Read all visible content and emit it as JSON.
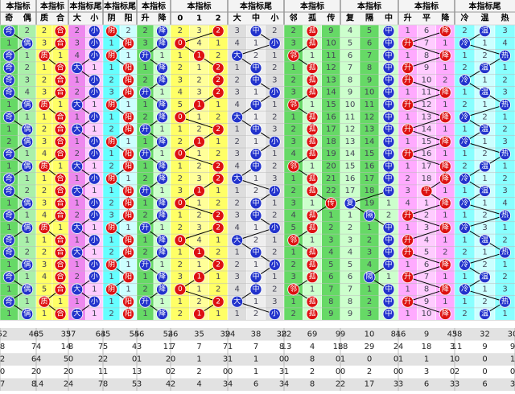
{
  "groups": [
    {
      "title": "本指标",
      "columns": [
        "奇",
        "偶"
      ]
    },
    {
      "title": "本指标",
      "columns": [
        "质",
        "合"
      ]
    },
    {
      "title": "本指标尾",
      "columns": [
        "大",
        "小"
      ]
    },
    {
      "title": "本指标尾",
      "columns": [
        "阴",
        "阳"
      ]
    },
    {
      "title": "本指标",
      "columns": [
        "升",
        "降"
      ]
    },
    {
      "title": "本指标",
      "columns": [
        "0",
        "1",
        "2"
      ]
    },
    {
      "title": "本指标尾",
      "columns": [
        "大",
        "中",
        "小"
      ]
    },
    {
      "title": "本指标",
      "columns": [
        "邻",
        "孤",
        "传"
      ]
    },
    {
      "title": "本指标",
      "columns": [
        "复",
        "隔",
        "中"
      ]
    },
    {
      "title": "本指标",
      "columns": [
        "升",
        "平",
        "降"
      ]
    },
    {
      "title": "本指标尾",
      "columns": [
        "冷",
        "温",
        "热"
      ]
    }
  ],
  "rows": [
    [
      "奇",
      2,
      2,
      "合",
      2,
      "小",
      "阴",
      2,
      2,
      "降",
      2,
      3,
      "2",
      3,
      "中",
      2,
      2,
      "孤",
      9,
      4,
      5,
      "中",
      1,
      6,
      "降",
      2,
      "温",
      3
    ],
    [
      1,
      "偶",
      3,
      "合",
      3,
      "小",
      1,
      "阳",
      3,
      "降",
      "0",
      4,
      1,
      4,
      1,
      "小",
      3,
      "孤",
      10,
      5,
      6,
      "中",
      "升",
      7,
      1,
      "冷",
      1,
      4
    ],
    [
      "奇",
      1,
      "质",
      1,
      4,
      "小",
      "阴",
      1,
      "升",
      1,
      1,
      "1",
      2,
      "大",
      2,
      1,
      "邻",
      1,
      11,
      6,
      7,
      "中",
      1,
      8,
      "降",
      1,
      2,
      "热"
    ],
    [
      "奇",
      2,
      1,
      "合",
      "大",
      1,
      1,
      "阳",
      1,
      "降",
      2,
      1,
      "2",
      1,
      "中",
      2,
      1,
      "孤",
      12,
      7,
      8,
      "中",
      "升",
      9,
      1,
      2,
      "温",
      1
    ],
    [
      "奇",
      3,
      2,
      "合",
      1,
      "小",
      2,
      "阳",
      2,
      "降",
      3,
      2,
      "2",
      2,
      "中",
      3,
      2,
      "孤",
      13,
      8,
      9,
      "中",
      "升",
      10,
      2,
      "冷",
      1,
      2
    ],
    [
      "奇",
      4,
      3,
      "合",
      2,
      "小",
      3,
      "阳",
      "升",
      1,
      4,
      3,
      "2",
      3,
      1,
      "小",
      3,
      "孤",
      14,
      9,
      10,
      "中",
      1,
      11,
      "降",
      1,
      "温",
      3
    ],
    [
      1,
      "偶",
      "质",
      1,
      "大",
      1,
      "阴",
      1,
      1,
      "降",
      5,
      "1",
      1,
      4,
      "中",
      1,
      "邻",
      1,
      15,
      10,
      11,
      "中",
      "升",
      12,
      1,
      2,
      1,
      "热"
    ],
    [
      "奇",
      1,
      1,
      "合",
      1,
      "小",
      1,
      "阳",
      2,
      "降",
      "0",
      1,
      2,
      "大",
      1,
      2,
      1,
      "孤",
      16,
      11,
      12,
      "中",
      1,
      13,
      "降",
      "冷",
      2,
      1
    ],
    [
      1,
      "偶",
      2,
      "合",
      "大",
      1,
      2,
      "阳",
      "升",
      1,
      1,
      2,
      "2",
      1,
      "中",
      3,
      2,
      "孤",
      17,
      12,
      13,
      "中",
      "升",
      14,
      1,
      1,
      "温",
      2
    ],
    [
      2,
      "偶",
      3,
      "合",
      1,
      "小",
      "阴",
      1,
      1,
      "降",
      2,
      "1",
      1,
      2,
      1,
      "小",
      3,
      "孤",
      18,
      13,
      14,
      "中",
      1,
      15,
      "降",
      "冷",
      1,
      3
    ],
    [
      "奇",
      1,
      4,
      "合",
      2,
      "小",
      1,
      "阳",
      "升",
      1,
      "0",
      1,
      2,
      3,
      "中",
      1,
      4,
      "孤",
      19,
      14,
      15,
      "中",
      "升",
      16,
      1,
      1,
      2,
      "热"
    ],
    [
      1,
      "偶",
      "质",
      1,
      "大",
      1,
      2,
      "阳",
      1,
      "降",
      1,
      2,
      "2",
      4,
      "中",
      2,
      "邻",
      1,
      20,
      15,
      16,
      "中",
      1,
      17,
      "降",
      2,
      "温",
      1
    ],
    [
      "奇",
      1,
      1,
      "合",
      1,
      "小",
      "阴",
      1,
      2,
      "降",
      2,
      3,
      "2",
      "大",
      1,
      3,
      1,
      "孤",
      21,
      16,
      17,
      "中",
      2,
      18,
      "降",
      "冷",
      1,
      2
    ],
    [
      "奇",
      2,
      2,
      "合",
      "大",
      1,
      1,
      "阳",
      "升",
      1,
      3,
      "1",
      1,
      1,
      2,
      "小",
      2,
      "孤",
      22,
      17,
      18,
      "中",
      3,
      "平",
      1,
      1,
      "温",
      3
    ],
    [
      1,
      "偶",
      3,
      "合",
      1,
      "小",
      2,
      "阳",
      1,
      "降",
      "0",
      1,
      2,
      2,
      "中",
      1,
      3,
      1,
      "传",
      "复",
      19,
      1,
      4,
      1,
      "降",
      "冷",
      1,
      4
    ],
    [
      "奇",
      1,
      4,
      "合",
      2,
      "小",
      3,
      "阳",
      2,
      "降",
      1,
      2,
      "2",
      3,
      "中",
      2,
      4,
      "孤",
      1,
      1,
      "隔",
      2,
      "升",
      2,
      1,
      1,
      2,
      "热"
    ],
    [
      1,
      "偶",
      "质",
      1,
      "大",
      1,
      "阴",
      1,
      "升",
      1,
      2,
      3,
      "2",
      4,
      1,
      "小",
      5,
      "孤",
      2,
      2,
      1,
      "中",
      1,
      3,
      "降",
      "冷",
      3,
      1
    ],
    [
      "奇",
      1,
      1,
      "合",
      1,
      "小",
      1,
      "阳",
      1,
      "降",
      "0",
      4,
      1,
      "大",
      2,
      1,
      "邻",
      1,
      3,
      3,
      2,
      "中",
      "升",
      4,
      1,
      1,
      "温",
      2
    ],
    [
      "奇",
      2,
      2,
      "合",
      "大",
      1,
      2,
      "阳",
      2,
      "降",
      1,
      "1",
      2,
      1,
      "中",
      2,
      1,
      "孤",
      4,
      4,
      3,
      "中",
      "升",
      5,
      2,
      2,
      1,
      "热"
    ],
    [
      1,
      "偶",
      3,
      "合",
      1,
      "小",
      "阴",
      1,
      "升",
      1,
      2,
      1,
      "2",
      2,
      1,
      "小",
      2,
      "孤",
      5,
      5,
      4,
      "中",
      1,
      6,
      "降",
      "冷",
      2,
      1
    ],
    [
      "奇",
      1,
      4,
      "合",
      2,
      "小",
      1,
      "阳",
      1,
      "降",
      3,
      "1",
      1,
      3,
      "中",
      1,
      3,
      "孤",
      6,
      6,
      "隔",
      1,
      "升",
      7,
      1,
      1,
      "温",
      2
    ],
    [
      1,
      "偶",
      5,
      "合",
      "大",
      1,
      "阴",
      1,
      2,
      "降",
      "0",
      1,
      2,
      4,
      "中",
      2,
      "邻",
      1,
      7,
      7,
      1,
      "中",
      1,
      8,
      "降",
      "冷",
      1,
      3
    ],
    [
      "奇",
      1,
      "质",
      1,
      1,
      "小",
      1,
      "阳",
      "升",
      1,
      1,
      2,
      "2",
      "大",
      1,
      3,
      1,
      "孤",
      8,
      8,
      2,
      "中",
      "升",
      9,
      1,
      1,
      2,
      "热"
    ],
    [
      1,
      "偶",
      1,
      "合",
      "大",
      1,
      2,
      "阳",
      1,
      "降",
      2,
      "1",
      1,
      1,
      2,
      "小",
      2,
      "孤",
      9,
      9,
      3,
      "中",
      1,
      10,
      "降",
      2,
      "温",
      1
    ]
  ],
  "footer": [
    [
      52,
      48,
      65,
      35,
      37,
      63,
      45,
      55,
      46,
      54,
      26,
      35,
      39,
      24,
      38,
      38,
      22,
      69,
      9,
      9,
      10,
      81,
      46,
      9,
      45,
      38,
      32,
      30
    ],
    [
      8,
      7,
      4,
      14,
      8,
      7,
      5,
      4,
      3,
      11,
      7,
      7,
      7,
      1,
      7,
      8,
      13,
      4,
      18,
      18,
      29,
      2,
      4,
      18,
      3,
      11,
      9,
      9
    ],
    [
      2,
      6,
      4,
      5,
      0,
      2,
      2,
      0,
      1,
      2,
      0,
      1,
      3,
      1,
      1,
      0,
      0,
      8,
      0,
      1,
      0,
      0,
      1,
      1,
      1,
      0,
      0,
      1
    ],
    [
      0,
      2,
      0,
      2,
      0,
      1,
      1,
      1,
      3,
      0,
      2,
      2,
      0,
      0,
      1,
      3,
      1,
      2,
      0,
      0,
      2,
      0,
      0,
      3,
      0,
      2,
      0,
      0
    ],
    [
      7,
      8,
      14,
      2,
      4,
      7,
      8,
      5,
      3,
      4,
      2,
      4,
      3,
      4,
      6,
      3,
      4,
      8,
      2,
      2,
      17,
      3,
      3,
      6,
      3,
      3,
      6,
      3
    ]
  ]
}
